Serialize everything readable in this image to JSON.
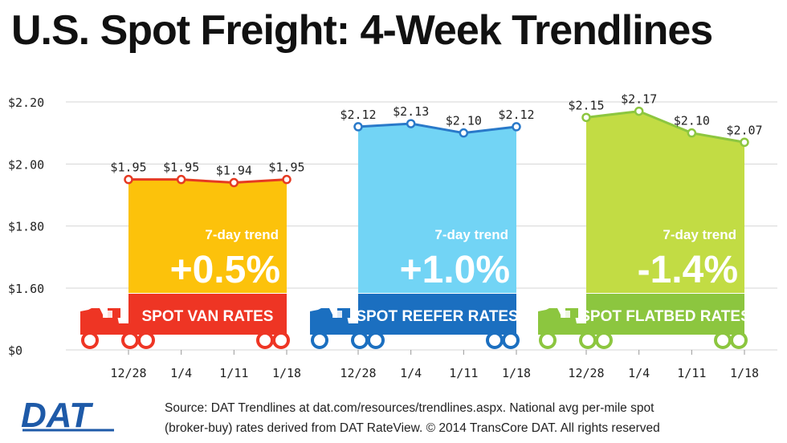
{
  "title": "U.S. Spot Freight: 4-Week Trendlines",
  "y_axis": {
    "ticks": [
      {
        "label": "$2.20",
        "value": 2.2
      },
      {
        "label": "$2.00",
        "value": 2.0
      },
      {
        "label": "$1.80",
        "value": 1.8
      },
      {
        "label": "$1.60",
        "value": 1.6
      },
      {
        "label": "$0",
        "value": 0
      }
    ]
  },
  "chart_data": [
    {
      "type": "line",
      "title": "SPOT VAN RATES",
      "x": [
        "12/28",
        "1/4",
        "1/11",
        "1/18"
      ],
      "values": [
        1.95,
        1.95,
        1.94,
        1.95
      ],
      "value_labels": [
        "$1.95",
        "$1.95",
        "$1.94",
        "$1.95"
      ],
      "trend_label": "7-day trend",
      "trend_value": "+0.5%",
      "color": "#fcc20b",
      "line_color": "#e53a22",
      "truck_color": "#ee3524",
      "banner_color": "#ee3524",
      "ylim": [
        1.5,
        2.2
      ]
    },
    {
      "type": "line",
      "title": "SPOT REEFER RATES",
      "x": [
        "12/28",
        "1/4",
        "1/11",
        "1/18"
      ],
      "values": [
        2.12,
        2.13,
        2.1,
        2.12
      ],
      "value_labels": [
        "$2.12",
        "$2.13",
        "$2.10",
        "$2.12"
      ],
      "trend_label": "7-day trend",
      "trend_value": "+1.0%",
      "color": "#72d4f5",
      "line_color": "#2979c9",
      "truck_color": "#1b6fc0",
      "banner_color": "#1b6fc0",
      "ylim": [
        1.5,
        2.2
      ]
    },
    {
      "type": "line",
      "title": "SPOT FLATBED RATES",
      "x": [
        "12/28",
        "1/4",
        "1/11",
        "1/18"
      ],
      "values": [
        2.15,
        2.17,
        2.1,
        2.07
      ],
      "value_labels": [
        "$2.15",
        "$2.17",
        "$2.10",
        "$2.07"
      ],
      "trend_label": "7-day trend",
      "trend_value": "-1.4%",
      "color": "#c2dc44",
      "line_color": "#8cc63f",
      "truck_color": "#8cc63f",
      "banner_color": "#8cc63f",
      "ylim": [
        1.5,
        2.2
      ]
    }
  ],
  "logo": {
    "text": "DAT"
  },
  "source": {
    "line1": "Source: DAT Trendlines at dat.com/resources/trendlines.aspx. National avg per-mile spot",
    "line2": "(broker-buy) rates derived from DAT RateView. © 2014 TransCore DAT. All rights reserved"
  }
}
